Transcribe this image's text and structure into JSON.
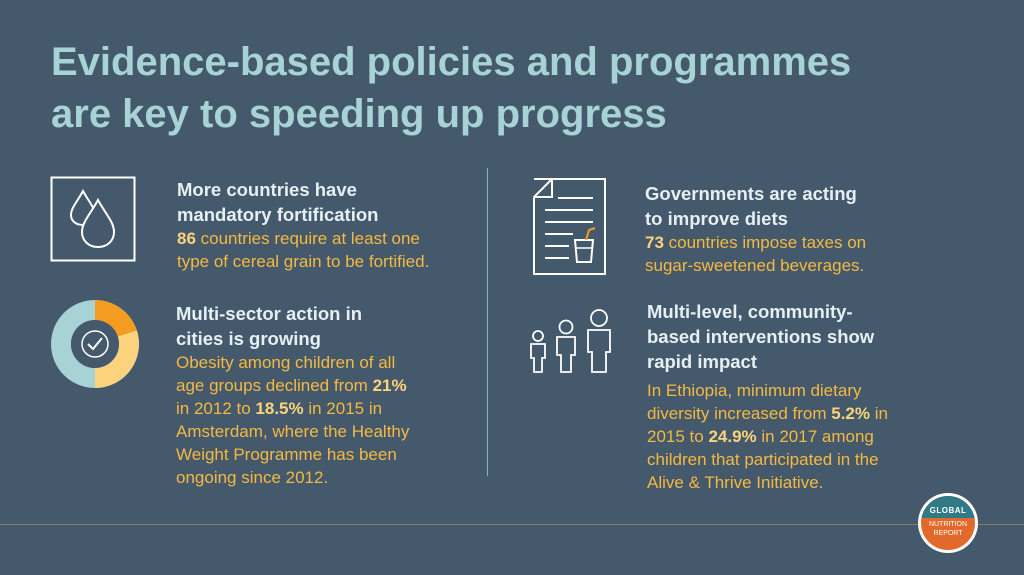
{
  "title": {
    "line1": "Evidence-based policies and programmes",
    "line2": "are key to speeding up progress"
  },
  "sections": [
    {
      "icon": "water-drops-icon",
      "heading_line1": "More countries have",
      "heading_line2": "mandatory fortification",
      "number": "86",
      "body_after_number": " countries require at least one",
      "body_line2": "type of cereal grain to be fortified."
    },
    {
      "icon": "document-with-drink-icon",
      "heading_line1": "Governments are acting",
      "heading_line2": "to improve diets",
      "number": "73",
      "body_after_number": " countries impose taxes on",
      "body_line2": "sugar-sweetened beverages."
    },
    {
      "icon": "donut-check-icon",
      "heading_line1": "Multi-sector action in",
      "heading_line2": "cities is growing",
      "body_line1": "Obesity among children of all",
      "body_line2_prefix": "age groups declined from ",
      "num1": "21%",
      "body_line3_prefix": "in 2012 to ",
      "num2": "18.5%",
      "body_line3_suffix": " in 2015 in",
      "body_line4": "Amsterdam, where the Healthy",
      "body_line5": "Weight Programme has been",
      "body_line6": "ongoing since 2012."
    },
    {
      "icon": "three-children-icon",
      "heading_line1": "Multi-level, community-",
      "heading_line2": "based interventions show",
      "heading_line3": "rapid impact",
      "body_line1": "In Ethiopia, minimum dietary",
      "body_line2_prefix": "diversity increased from ",
      "num1": "5.2%",
      "body_line2_suffix": " in",
      "body_line3_prefix": "2015 to ",
      "num2": "24.9%",
      "body_line3_suffix": " in 2017 among",
      "body_line4": "children that participated in the",
      "body_line5": "Alive & Thrive Initiative."
    }
  ],
  "logo": {
    "top": "GLOBAL",
    "bottom_line1": "NUTRITION",
    "bottom_line2": "REPORT"
  },
  "colors": {
    "background": "#44596b",
    "title": "#a8d3d6",
    "heading": "#e6f0f3",
    "body": "#f5b942",
    "donut_light": "#fbd37c",
    "donut_orange": "#f39c1f",
    "donut_teal": "#a8d3d6"
  }
}
